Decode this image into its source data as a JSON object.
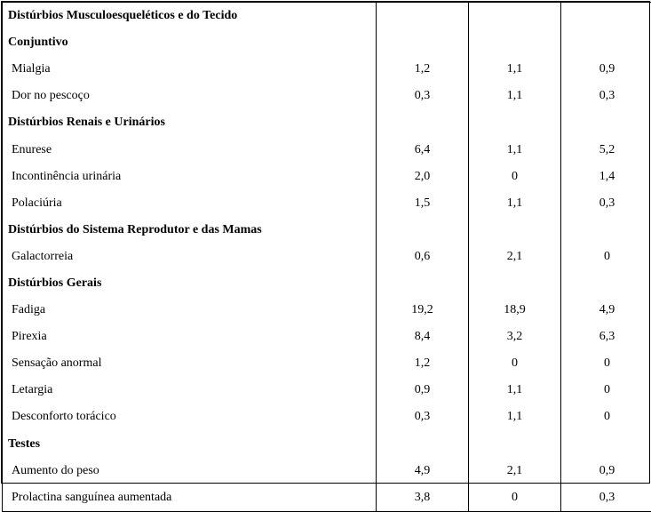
{
  "table": {
    "layout": {
      "label_col_width": 420,
      "value_col_width": 103,
      "row_height": 30.1,
      "font_family": "Times New Roman",
      "font_size": 14,
      "border_color": "#000000",
      "background_color": "#ffffff",
      "text_color": "#000000"
    },
    "rows": [
      {
        "type": "heading",
        "label": "Distúrbios Musculoesqueléticos e do Tecido",
        "v1": "",
        "v2": "",
        "v3": ""
      },
      {
        "type": "heading",
        "label": "Conjuntivo",
        "v1": "",
        "v2": "",
        "v3": ""
      },
      {
        "type": "data",
        "label": "Mialgia",
        "v1": "1,2",
        "v2": "1,1",
        "v3": "0,9"
      },
      {
        "type": "data",
        "label": "Dor no pescoço",
        "v1": "0,3",
        "v2": "1,1",
        "v3": "0,3"
      },
      {
        "type": "heading",
        "label": "Distúrbios Renais e Urinários",
        "v1": "",
        "v2": "",
        "v3": ""
      },
      {
        "type": "data",
        "label": "Enurese",
        "v1": "6,4",
        "v2": "1,1",
        "v3": "5,2"
      },
      {
        "type": "data",
        "label": "Incontinência urinária",
        "v1": "2,0",
        "v2": "0",
        "v3": "1,4"
      },
      {
        "type": "data",
        "label": "Polaciúria",
        "v1": "1,5",
        "v2": "1,1",
        "v3": "0,3"
      },
      {
        "type": "heading",
        "label": "Distúrbios do Sistema Reprodutor e das Mamas",
        "v1": "",
        "v2": "",
        "v3": ""
      },
      {
        "type": "data",
        "label": "Galactorreia",
        "v1": "0,6",
        "v2": "2,1",
        "v3": "0"
      },
      {
        "type": "heading",
        "label": "Distúrbios Gerais",
        "v1": "",
        "v2": "",
        "v3": ""
      },
      {
        "type": "data",
        "label": "Fadiga",
        "v1": "19,2",
        "v2": "18,9",
        "v3": "4,9"
      },
      {
        "type": "data",
        "label": "Pirexia",
        "v1": "8,4",
        "v2": "3,2",
        "v3": "6,3"
      },
      {
        "type": "data",
        "label": "Sensação anormal",
        "v1": "1,2",
        "v2": "0",
        "v3": "0"
      },
      {
        "type": "data",
        "label": "Letargia",
        "v1": "0,9",
        "v2": "1,1",
        "v3": "0"
      },
      {
        "type": "data",
        "label": "Desconforto torácico",
        "v1": "0,3",
        "v2": "1,1",
        "v3": "0"
      },
      {
        "type": "heading",
        "label": "Testes",
        "v1": "",
        "v2": "",
        "v3": ""
      },
      {
        "type": "data",
        "label": "Aumento do peso",
        "v1": "4,9",
        "v2": "2,1",
        "v3": "0,9"
      },
      {
        "type": "data",
        "label": "Prolactina sanguínea aumentada",
        "v1": "3,8",
        "v2": "0",
        "v3": "0,3"
      }
    ]
  }
}
